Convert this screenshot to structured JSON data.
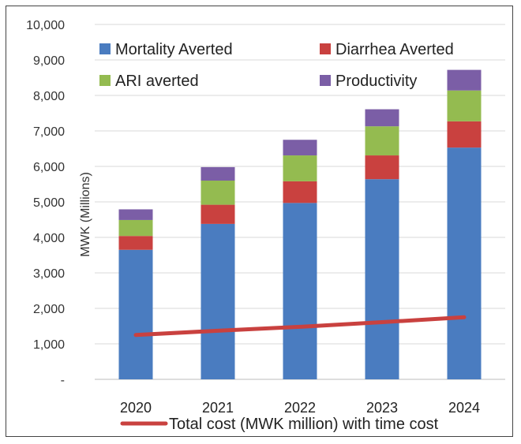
{
  "chart_data": {
    "type": "bar",
    "stacked": true,
    "categories": [
      "2020",
      "2021",
      "2022",
      "2023",
      "2024"
    ],
    "series": [
      {
        "name": "Mortality Averted",
        "color": "#4a7cc0",
        "values": [
          3650,
          4380,
          4970,
          5640,
          6530
        ]
      },
      {
        "name": "Diarrhea Averted",
        "color": "#c9413f",
        "values": [
          390,
          540,
          610,
          670,
          740
        ]
      },
      {
        "name": "ARI averted",
        "color": "#94bb50",
        "values": [
          450,
          680,
          730,
          820,
          870
        ]
      },
      {
        "name": "Productivity",
        "color": "#7b5ea6",
        "values": [
          300,
          380,
          440,
          480,
          580
        ]
      }
    ],
    "line_series": {
      "name": "Total cost (MWK million) with time cost",
      "color": "#c9413f",
      "values": [
        1250,
        1370,
        1480,
        1610,
        1750
      ]
    },
    "ylabel": "MWK (Millions)",
    "ylim": [
      0,
      10000
    ],
    "yticks": [
      "-",
      "1,000",
      "2,000",
      "3,000",
      "4,000",
      "5,000",
      "6,000",
      "7,000",
      "8,000",
      "9,000",
      "10,000"
    ],
    "grid": true,
    "legend_position": "top"
  }
}
